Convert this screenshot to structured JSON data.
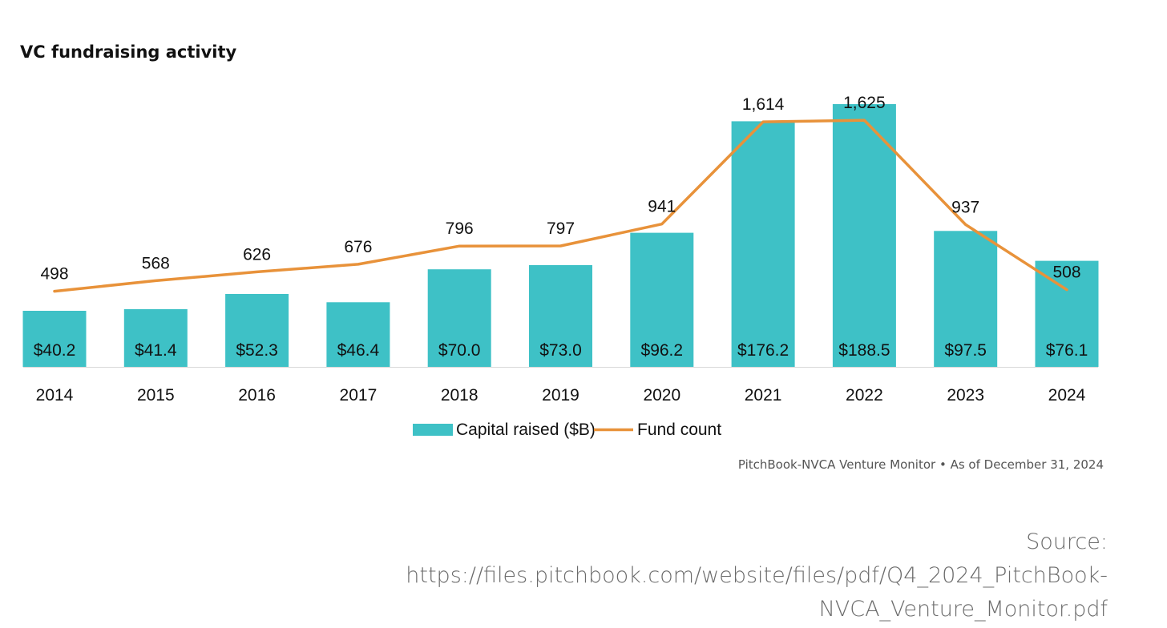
{
  "chart_data": {
    "type": "bar",
    "title": "VC fundraising activity",
    "categories": [
      "2014",
      "2015",
      "2016",
      "2017",
      "2018",
      "2019",
      "2020",
      "2021",
      "2022",
      "2023",
      "2024"
    ],
    "series": [
      {
        "name": "Capital raised ($B)",
        "type": "bar",
        "values": [
          40.2,
          41.4,
          52.3,
          46.4,
          70.0,
          73.0,
          96.2,
          176.2,
          188.5,
          97.5,
          76.1
        ],
        "labels": [
          "$40.2",
          "$41.4",
          "$52.3",
          "$46.4",
          "$70.0",
          "$73.0",
          "$96.2",
          "$176.2",
          "$188.5",
          "$97.5",
          "$76.1"
        ],
        "color": "#3ec1c6"
      },
      {
        "name": "Fund count",
        "type": "line",
        "values": [
          498,
          568,
          626,
          676,
          796,
          797,
          941,
          1614,
          1625,
          937,
          508
        ],
        "labels": [
          "498",
          "568",
          "626",
          "676",
          "796",
          "797",
          "941",
          "1,614",
          "1,625",
          "937",
          "508"
        ],
        "color": "#e8923a"
      }
    ],
    "ylim_bar": [
      0,
      188.5
    ],
    "ylim_line": [
      0,
      1900
    ],
    "grid": false,
    "legend": "bottom-center",
    "note": "PitchBook-NVCA Venture Monitor  •  As of December 31, 2024"
  },
  "source": {
    "line1": "Source:",
    "line2": "https://files.pitchbook.com/website/files/pdf/Q4_2024_PitchBook-",
    "line3": "NVCA_Venture_Monitor.pdf"
  }
}
